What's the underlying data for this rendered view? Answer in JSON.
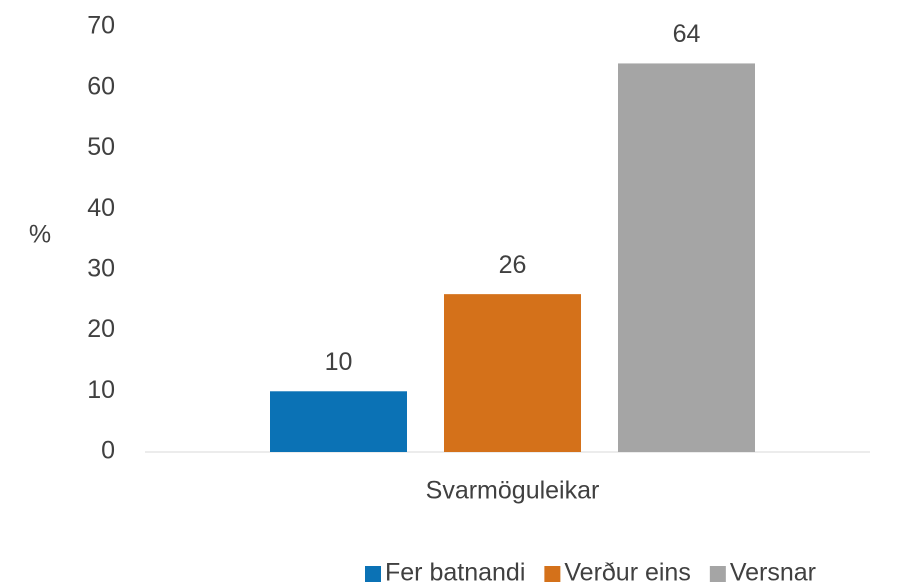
{
  "chart_data": {
    "type": "bar",
    "ylabel": "%",
    "categories": [
      "Svarmöguleikar"
    ],
    "series": [
      {
        "name": "Fer batnandi",
        "color": "#0b72b5",
        "values": [
          10
        ]
      },
      {
        "name": "Verður eins",
        "color": "#d4711a",
        "values": [
          26
        ]
      },
      {
        "name": "Versnar",
        "color": "#a5a5a5",
        "values": [
          64
        ]
      }
    ],
    "ylim": [
      0,
      70
    ],
    "yticks": [
      0,
      10,
      20,
      30,
      40,
      50,
      60,
      70
    ],
    "grid": false,
    "legend": "bottom"
  }
}
